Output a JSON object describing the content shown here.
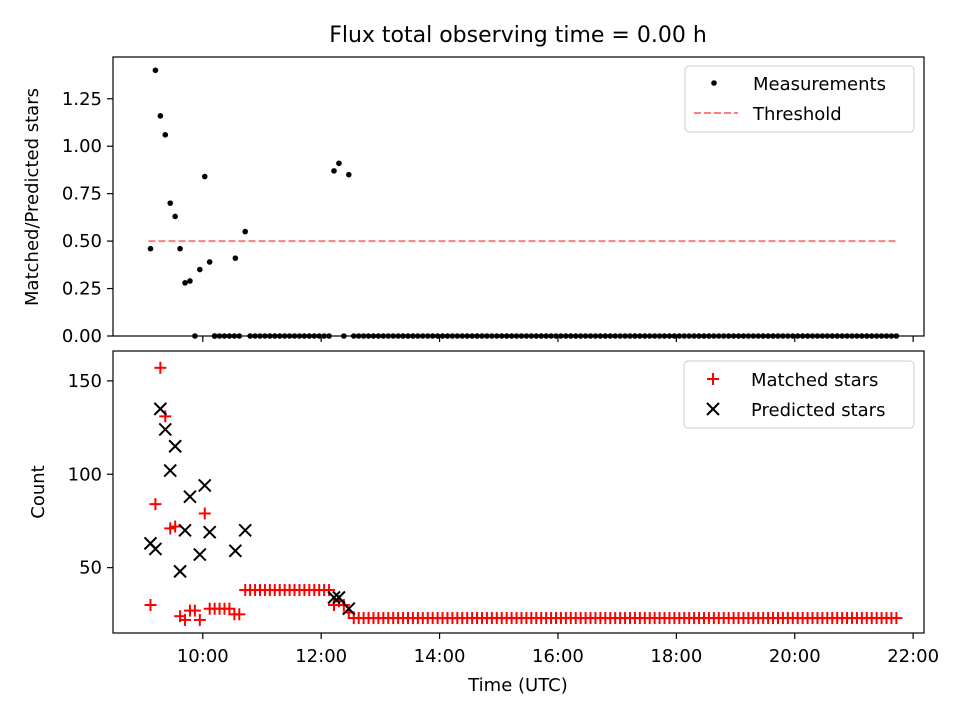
{
  "chart_data": [
    {
      "type": "scatter",
      "title": "Flux total observing time = 0.00 h",
      "xlabel": "",
      "ylabel": "Matched/Predicted stars",
      "x_unit": "time (UTC, HH:MM)",
      "xlim": [
        "08:29",
        "22:11"
      ],
      "ylim": [
        0,
        1.47
      ],
      "yticks": [
        "0.00",
        "0.25",
        "0.50",
        "0.75",
        "1.00",
        "1.25"
      ],
      "legend_position": "upper right",
      "series": [
        {
          "name": "Measurements",
          "kind": "scatter",
          "color": "#000000",
          "marker": "dot",
          "points": [
            [
              "09:07",
              0.46
            ],
            [
              "09:12",
              1.4
            ],
            [
              "09:17",
              1.16
            ],
            [
              "09:22",
              1.06
            ],
            [
              "09:27",
              0.7
            ],
            [
              "09:32",
              0.63
            ],
            [
              "09:37",
              0.46
            ],
            [
              "09:42",
              0.28
            ],
            [
              "09:47",
              0.29
            ],
            [
              "09:52",
              0.0
            ],
            [
              "09:57",
              0.35
            ],
            [
              "10:02",
              0.84
            ],
            [
              "10:07",
              0.39
            ],
            [
              "10:12",
              0.0
            ],
            [
              "10:33",
              0.41
            ],
            [
              "10:43",
              0.55
            ],
            [
              "12:13",
              0.87
            ],
            [
              "12:18",
              0.91
            ],
            [
              "12:28",
              0.85
            ]
          ],
          "zero_runs": [
            {
              "from": "10:12",
              "to": "10:38",
              "step_minutes": 5,
              "y": 0
            },
            {
              "from": "10:48",
              "to": "12:08",
              "step_minutes": 5,
              "y": 0
            },
            {
              "from": "12:23",
              "to": "12:23",
              "step_minutes": 5,
              "y": 0
            },
            {
              "from": "12:33",
              "to": "21:43",
              "step_minutes": 5,
              "y": 0
            }
          ]
        },
        {
          "name": "Threshold",
          "kind": "line",
          "style": "dashed",
          "color": "#ff7f7f",
          "points": [
            [
              "09:05",
              0.5
            ],
            [
              "21:45",
              0.5
            ]
          ]
        }
      ]
    },
    {
      "type": "scatter",
      "title": "",
      "xlabel": "Time (UTC)",
      "ylabel": "Count",
      "x_unit": "time (UTC, HH:MM)",
      "xlim": [
        "08:29",
        "22:11"
      ],
      "ylim": [
        15,
        166
      ],
      "yticks": [
        "50",
        "100",
        "150"
      ],
      "xticks": [
        "10:00",
        "12:00",
        "14:00",
        "16:00",
        "18:00",
        "20:00",
        "22:00"
      ],
      "legend_position": "upper right",
      "series": [
        {
          "name": "Matched stars",
          "kind": "scatter",
          "color": "#ff0000",
          "marker": "plus",
          "points": [
            [
              "09:07",
              30
            ],
            [
              "09:12",
              84
            ],
            [
              "09:17",
              157
            ],
            [
              "09:22",
              131
            ],
            [
              "09:27",
              71
            ],
            [
              "09:32",
              72
            ],
            [
              "09:37",
              24
            ],
            [
              "09:42",
              22
            ],
            [
              "09:47",
              27
            ],
            [
              "09:52",
              27
            ],
            [
              "09:57",
              22
            ],
            [
              "10:02",
              79
            ],
            [
              "10:07",
              28
            ],
            [
              "10:12",
              28
            ],
            [
              "10:17",
              28
            ],
            [
              "10:22",
              28
            ],
            [
              "10:27",
              28
            ],
            [
              "10:32",
              25
            ],
            [
              "10:37",
              25
            ],
            [
              "12:13",
              30
            ],
            [
              "12:18",
              32
            ],
            [
              "12:23",
              30
            ],
            [
              "12:28",
              26
            ]
          ],
          "runs": [
            {
              "from": "10:43",
              "to": "12:08",
              "step_minutes": 5,
              "y": 38
            },
            {
              "from": "12:33",
              "to": "21:43",
              "step_minutes": 5,
              "y": 23
            }
          ]
        },
        {
          "name": "Predicted stars",
          "kind": "scatter",
          "color": "#000000",
          "marker": "x",
          "points": [
            [
              "09:07",
              63
            ],
            [
              "09:12",
              60
            ],
            [
              "09:17",
              135
            ],
            [
              "09:22",
              124
            ],
            [
              "09:27",
              102
            ],
            [
              "09:32",
              115
            ],
            [
              "09:37",
              48
            ],
            [
              "09:42",
              70
            ],
            [
              "09:47",
              88
            ],
            [
              "09:57",
              57
            ],
            [
              "10:02",
              94
            ],
            [
              "10:07",
              69
            ],
            [
              "10:33",
              59
            ],
            [
              "10:43",
              70
            ],
            [
              "12:13",
              34
            ],
            [
              "12:18",
              34
            ],
            [
              "12:28",
              28
            ]
          ]
        }
      ]
    }
  ]
}
